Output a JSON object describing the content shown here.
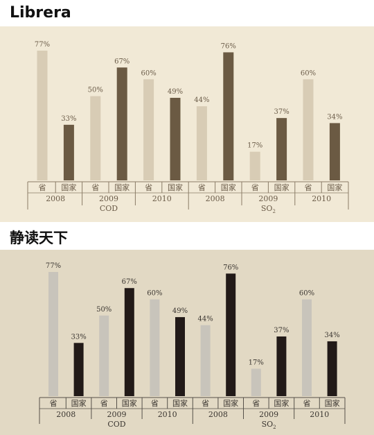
{
  "apps": [
    {
      "name": "Librera"
    },
    {
      "name": "静读天下"
    }
  ],
  "chart_data": {
    "type": "bar",
    "title": "",
    "xlabel": "",
    "ylabel": "",
    "ylim": [
      0,
      80
    ],
    "groups": [
      {
        "metric": "COD",
        "years": [
          {
            "year": "2008",
            "bars": [
              {
                "label": "省",
                "value": 77,
                "text": "77%"
              },
              {
                "label": "国家",
                "value": 33,
                "text": "33%"
              }
            ]
          },
          {
            "year": "2009",
            "bars": [
              {
                "label": "省",
                "value": 50,
                "text": "50%"
              },
              {
                "label": "国家",
                "value": 67,
                "text": "67%"
              }
            ]
          },
          {
            "year": "2010",
            "bars": [
              {
                "label": "省",
                "value": 60,
                "text": "60%"
              },
              {
                "label": "国家",
                "value": 49,
                "text": "49%"
              }
            ]
          }
        ]
      },
      {
        "metric": "SO",
        "metric_sub": "2",
        "years": [
          {
            "year": "2008",
            "bars": [
              {
                "label": "省",
                "value": 44,
                "text": "44%"
              },
              {
                "label": "国家",
                "value": 76,
                "text": "76%"
              }
            ]
          },
          {
            "year": "2009",
            "bars": [
              {
                "label": "省",
                "value": 17,
                "text": "17%"
              },
              {
                "label": "国家",
                "value": 37,
                "text": "37%"
              }
            ]
          },
          {
            "year": "2010",
            "bars": [
              {
                "label": "省",
                "value": 60,
                "text": "60%"
              },
              {
                "label": "国家",
                "value": 34,
                "text": "34%"
              }
            ]
          }
        ]
      }
    ],
    "colors": {
      "top_light": "#d8ccb5",
      "top_dark": "#6b5a43",
      "bottom_light": "#c8c4bb",
      "bottom_dark": "#221a18"
    }
  }
}
